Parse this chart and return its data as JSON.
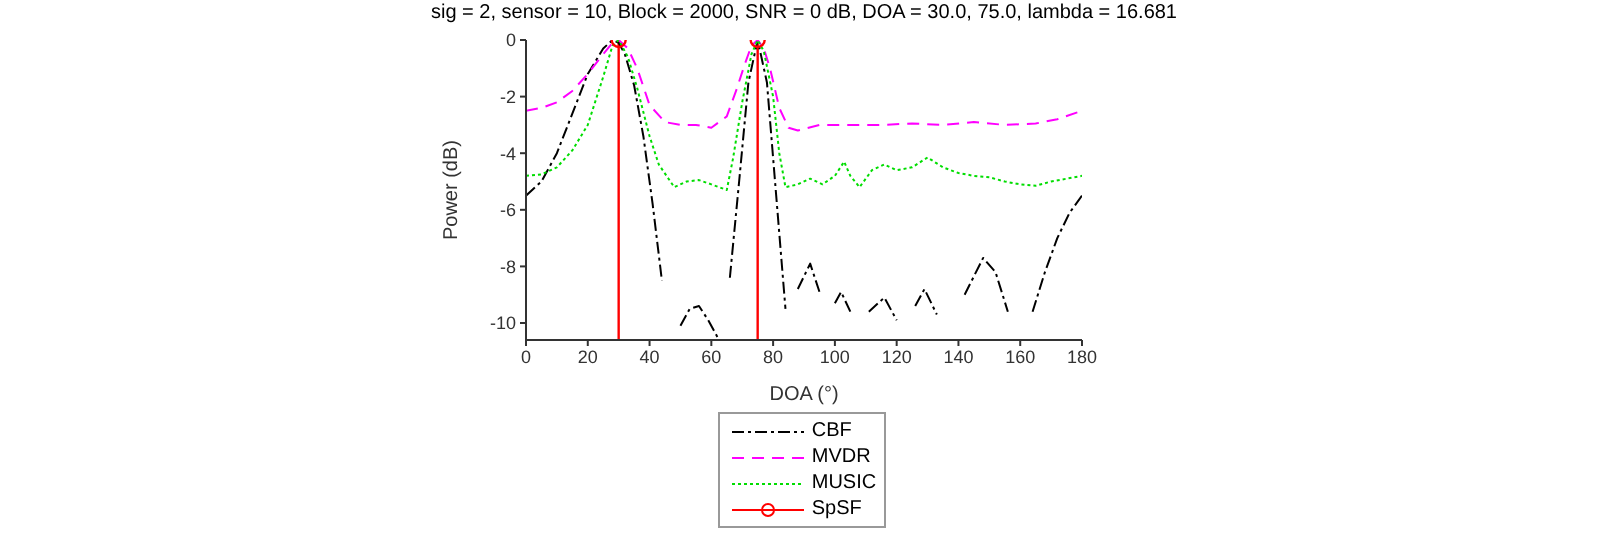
{
  "chart_data": {
    "type": "line",
    "title": "sig = 2, sensor = 10, Block = 2000, SNR = 0 dB, DOA = 30.0, 75.0, lambda = 16.681",
    "xlabel": "DOA (°)",
    "ylabel": "Power (dB)",
    "xlim": [
      0,
      180
    ],
    "xticks": [
      0,
      20,
      40,
      60,
      80,
      100,
      120,
      140,
      160,
      180
    ],
    "ylim": [
      -10.6,
      0
    ],
    "yticks": [
      -10,
      -8,
      -6,
      -4,
      -2,
      0
    ],
    "grid": false,
    "legend": "bottom",
    "marker": "none",
    "series": [
      {
        "name": "CBF",
        "color": "#000000",
        "line_style": "dashdot",
        "x": [
          0,
          5,
          10,
          15,
          20,
          25,
          28,
          30,
          32,
          35,
          38,
          41,
          44,
          47,
          50,
          53,
          56,
          59,
          62,
          63,
          66,
          69,
          72,
          75,
          78,
          81,
          84,
          85,
          88,
          92,
          95,
          97,
          100,
          102,
          105,
          108,
          111,
          116,
          120,
          123,
          126,
          129,
          133,
          138,
          142,
          148,
          152,
          156,
          160,
          164,
          168,
          172,
          176,
          180
        ],
        "values": [
          -5.5,
          -5.0,
          -4.0,
          -2.6,
          -1.2,
          -0.3,
          0,
          -0.1,
          -0.5,
          -1.6,
          -3.4,
          -5.8,
          -8.5,
          null,
          -10.1,
          -9.5,
          -9.4,
          -9.9,
          -10.5,
          null,
          -8.4,
          -5.0,
          -1.5,
          0,
          -1.5,
          -5.5,
          -9.5,
          null,
          -8.8,
          -7.9,
          -8.9,
          null,
          -9.3,
          -8.9,
          -9.6,
          null,
          -9.6,
          -9.1,
          -9.9,
          null,
          -9.4,
          -8.8,
          -9.7,
          null,
          -9.0,
          -7.7,
          -8.2,
          -9.6,
          null,
          -9.6,
          -8.2,
          -7.0,
          -6.1,
          -5.5
        ]
      },
      {
        "name": "MVDR",
        "color": "#ff00ff",
        "line_style": "dashed",
        "x": [
          0,
          5,
          10,
          15,
          20,
          25,
          28,
          30,
          33,
          36,
          40,
          45,
          50,
          55,
          60,
          65,
          68,
          71,
          73,
          75,
          77,
          79,
          82,
          85,
          88,
          95,
          105,
          115,
          125,
          135,
          145,
          155,
          165,
          172,
          180
        ],
        "values": [
          -2.5,
          -2.4,
          -2.2,
          -1.8,
          -1.2,
          -0.5,
          -0.1,
          0,
          -0.3,
          -1.0,
          -2.3,
          -2.9,
          -3.0,
          -3.0,
          -3.1,
          -2.7,
          -1.8,
          -0.8,
          -0.2,
          0,
          -0.3,
          -1.0,
          -2.4,
          -3.1,
          -3.2,
          -3.0,
          -3.0,
          -3.0,
          -2.95,
          -3.0,
          -2.9,
          -3.0,
          -2.95,
          -2.8,
          -2.5
        ]
      },
      {
        "name": "MUSIC",
        "color": "#00dd00",
        "line_style": "dotted",
        "x": [
          0,
          5,
          10,
          15,
          20,
          25,
          28,
          30,
          33,
          36,
          40,
          43,
          48,
          52,
          56,
          60,
          65,
          67,
          70,
          73,
          75,
          77,
          80,
          82,
          84,
          88,
          92,
          96,
          100,
          103,
          105,
          108,
          112,
          116,
          120,
          125,
          130,
          135,
          140,
          145,
          150,
          155,
          160,
          165,
          170,
          175,
          180
        ],
        "values": [
          -4.8,
          -4.75,
          -4.5,
          -3.9,
          -3.0,
          -1.3,
          -0.2,
          0,
          -0.6,
          -1.7,
          -3.4,
          -4.4,
          -5.2,
          -5.0,
          -4.95,
          -5.1,
          -5.3,
          -4.2,
          -2.2,
          -0.5,
          0,
          -0.4,
          -2.0,
          -4.0,
          -5.2,
          -5.1,
          -4.9,
          -5.1,
          -4.8,
          -4.3,
          -4.8,
          -5.2,
          -4.6,
          -4.4,
          -4.6,
          -4.5,
          -4.15,
          -4.5,
          -4.7,
          -4.8,
          -4.85,
          -5.0,
          -5.1,
          -5.15,
          -5.0,
          -4.9,
          -4.8
        ]
      },
      {
        "name": "SpSF",
        "color": "#ff0000",
        "type": "scatter",
        "marker": "circle",
        "line_style": "solid",
        "x": [
          30,
          75
        ],
        "values": [
          0,
          0
        ]
      }
    ],
    "ref_lines": [
      {
        "axis": "x",
        "value": 30,
        "color": "#ff0000",
        "line_style": "solid"
      },
      {
        "axis": "x",
        "value": 75,
        "color": "#ff0000",
        "line_style": "solid"
      }
    ]
  }
}
